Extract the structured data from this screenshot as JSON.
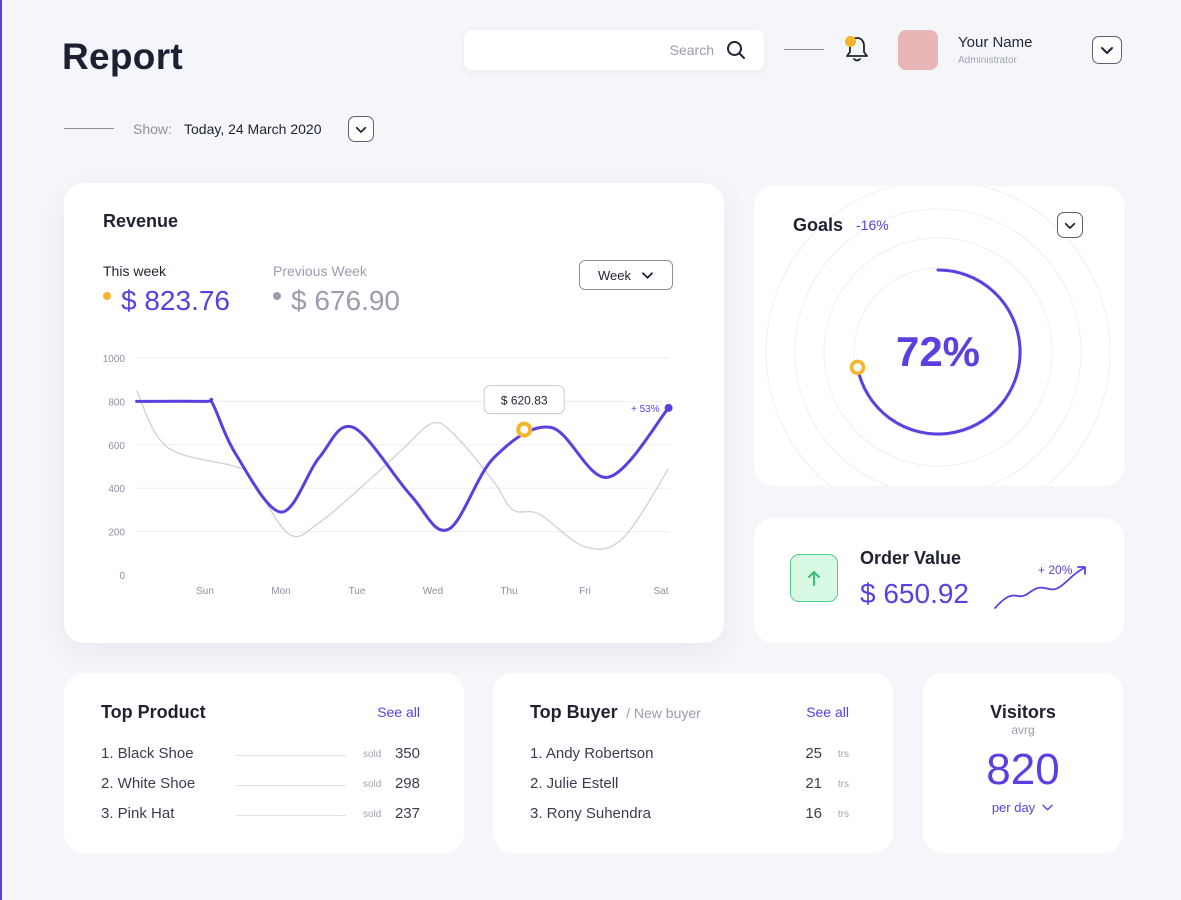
{
  "header": {
    "title": "Report",
    "search_placeholder": "Search",
    "user": {
      "name": "Your Name",
      "role": "Administrator"
    }
  },
  "filter": {
    "label": "Show:",
    "value": "Today, 24 March 2020"
  },
  "revenue": {
    "title": "Revenue",
    "this_week_label": "This week",
    "this_week_value": "$ 823.76",
    "previous_week_label": "Previous Week",
    "previous_week_value": "$ 676.90",
    "period_select": "Week",
    "tooltip": "$ 620.83",
    "change_label": "+ 53%"
  },
  "chart_data": {
    "type": "line",
    "categories": [
      "Sun",
      "Mon",
      "Tue",
      "Wed",
      "Thu",
      "Fri",
      "Sat"
    ],
    "yticks": [
      0,
      200,
      400,
      600,
      800,
      1000
    ],
    "ylim": [
      0,
      1000
    ],
    "series": [
      {
        "role": "this_week",
        "color": "#5b3fe0",
        "x": [
          -0.9,
          0,
          0.1,
          0.4,
          1,
          1.5,
          1.95,
          2.7,
          3.2,
          3.8,
          4.55,
          5.3,
          6.1
        ],
        "values": [
          800,
          800,
          790,
          560,
          290,
          540,
          680,
          370,
          210,
          540,
          680,
          450,
          770
        ]
      },
      {
        "role": "previous_week",
        "color": "#cfd0d8",
        "x": [
          -0.9,
          -0.5,
          0.4,
          0.6,
          1.1,
          1.5,
          2.2,
          2.6,
          3,
          3.3,
          3.8,
          4.05,
          4.4,
          5,
          5.5,
          6.1
        ],
        "values": [
          850,
          590,
          500,
          450,
          190,
          240,
          450,
          580,
          700,
          640,
          430,
          300,
          280,
          130,
          170,
          490
        ]
      }
    ],
    "highlight": {
      "x": 4.2,
      "value": 670
    }
  },
  "goals": {
    "title": "Goals",
    "change": "-16%",
    "percent_label": "72%",
    "percent": 72
  },
  "order_value": {
    "title": "Order Value",
    "value": "$ 650.92",
    "change": "+ 20%"
  },
  "top_product": {
    "title": "Top Product",
    "see_all": "See all",
    "unit": "sold",
    "items": [
      {
        "name": "1. Black Shoe",
        "value": "350"
      },
      {
        "name": "2. White Shoe",
        "value": "298"
      },
      {
        "name": "3. Pink Hat",
        "value": "237"
      }
    ]
  },
  "top_buyer": {
    "title": "Top Buyer",
    "subtitle": "/ New buyer",
    "see_all": "See all",
    "unit": "trs",
    "items": [
      {
        "name": "1. Andy Robertson",
        "value": "25"
      },
      {
        "name": "2. Julie Estell",
        "value": "21"
      },
      {
        "name": "3. Rony Suhendra",
        "value": "16"
      }
    ]
  },
  "visitors": {
    "title": "Visitors",
    "subtitle": "avrg",
    "value": "820",
    "period": "per day"
  },
  "colors": {
    "accent": "#5b3fe0",
    "highlight": "#f5b52a",
    "positive": "#4fd08a"
  }
}
